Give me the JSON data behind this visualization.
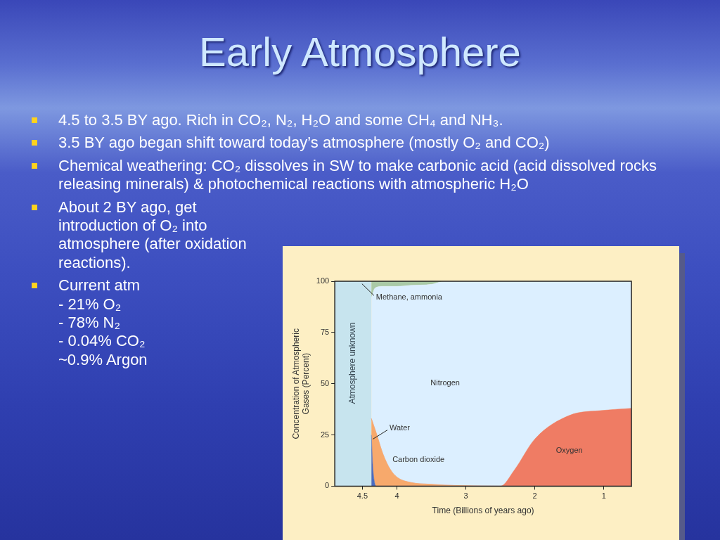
{
  "chart_data": {
    "type": "area",
    "stacked": true,
    "title": "Early Atmosphere",
    "annotations": [
      "4.5 to 3.5 BY ago.  Rich in CO₂, N₂, H₂O and some CH₄ and NH₃.",
      "3.5 BY ago began shift toward today’s atmosphere (mostly O₂ and CO₂)",
      "Chemical weathering:  CO₂ dissolves in SW to make carbonic acid (acid dissolved rocks releasing minerals) & photochemical reactions with atmospheric H₂O",
      "About 2 BY ago, get introduction of O₂ into atmosphere (after oxidation reactions).",
      "Current atm\n- 21% O₂\n- 78% N₂\n- 0.04% CO₂\n~0.9% Argon"
    ],
    "xlabel": "Time (Billions of years ago)",
    "ylabel": "Concentration of Atmospheric\nGases (Percent)",
    "x": [
      4.37,
      4.35,
      4.33,
      4.3,
      4.2,
      4.1,
      4.0,
      3.8,
      3.5,
      3.3,
      3.0,
      2.5,
      2.3,
      2.0,
      1.5,
      1.0,
      0.6
    ],
    "series": [
      {
        "name": "Water",
        "color": "#4a6cc0",
        "values": [
          25,
          10,
          3,
          0,
          0,
          0,
          0,
          0,
          0,
          0,
          0,
          0,
          0,
          0,
          0,
          0,
          0
        ]
      },
      {
        "name": "Carbon dioxide",
        "color": "#f7a96c",
        "values": [
          8,
          21,
          26,
          26,
          15.5,
          8.4,
          4.4,
          1.8,
          0.9,
          0.5,
          0.2,
          0,
          0,
          0,
          0,
          0,
          0
        ]
      },
      {
        "name": "Oxygen",
        "color": "#ef7c64",
        "values": [
          0,
          0,
          0,
          0,
          0,
          0,
          0,
          0,
          0,
          0,
          0,
          0,
          7.7,
          23,
          34.5,
          37,
          38
        ]
      },
      {
        "name": "Nitrogen",
        "color": "#dcefff",
        "values": [
          59,
          63,
          67,
          71,
          82,
          89.1,
          93.1,
          96.2,
          97.6,
          99.5,
          99.8,
          100,
          92.3,
          77,
          65.5,
          63,
          62
        ]
      },
      {
        "name": "Methane, ammonia",
        "color": "#a9c9a6",
        "values": [
          8,
          6,
          4,
          3,
          2.5,
          2.5,
          2.5,
          2,
          1.5,
          0,
          0,
          0,
          0,
          0,
          0,
          0,
          0
        ]
      }
    ],
    "xlim": [
      4.9,
      0.6
    ],
    "xticks": [
      4.5,
      4,
      3,
      2,
      1
    ],
    "ylim": [
      0,
      100
    ],
    "yticks": [
      0,
      25,
      50,
      75,
      100
    ],
    "bands": [
      {
        "axis": "x",
        "from": 4.9,
        "to": 4.37,
        "label": "Atmosphere unknown",
        "color": "#c7e4ee"
      }
    ]
  }
}
